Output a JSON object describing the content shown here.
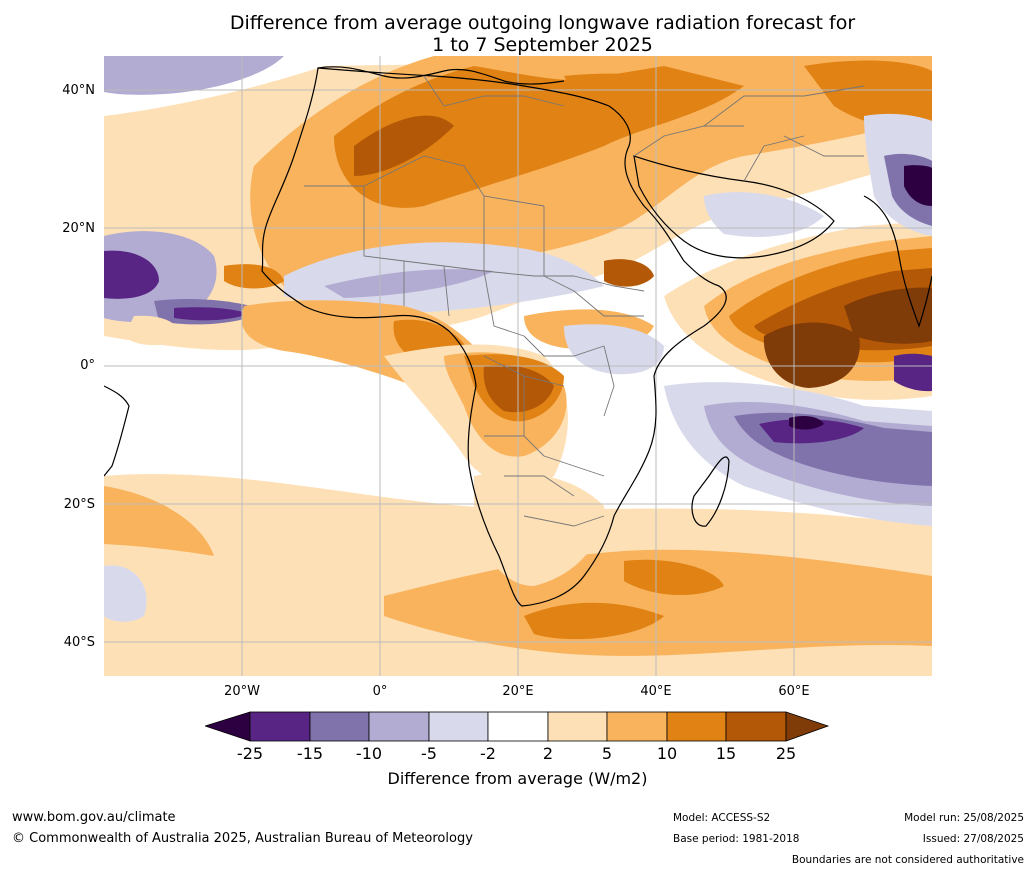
{
  "title": {
    "line1": "Difference from average outgoing longwave radiation forecast for",
    "line2": "1 to 7 September 2025"
  },
  "map": {
    "lat_labels": [
      "40°N",
      "20°N",
      "0°",
      "20°S",
      "40°S"
    ],
    "lon_labels": [
      "20°W",
      "0°",
      "20°E",
      "40°E",
      "60°E"
    ],
    "extent": {
      "lon_min": -40,
      "lon_max": 80,
      "lat_min": -45,
      "lat_max": 45
    },
    "grid": true,
    "colors": {
      "lt_-25": "#2d0041",
      "-25_-15": "#582585",
      "-15_-10": "#8073ac",
      "-10_-5": "#b2abd2",
      "-5_-2": "#d8daeb",
      "-2_2": "#ffffff",
      "2_5": "#fee0b6",
      "5_10": "#f9b35d",
      "10_15": "#e08214",
      "15_25": "#b35806",
      "gt_25": "#7f3b08"
    }
  },
  "colorbar": {
    "ticks": [
      "-25",
      "-15",
      "-10",
      "-5",
      "-2",
      "2",
      "5",
      "10",
      "15",
      "25"
    ],
    "label": "Difference from average (W/m2)"
  },
  "footer": {
    "url": "www.bom.gov.au/climate",
    "copyright": "© Commonwealth of Australia 2025, Australian Bureau of Meteorology",
    "model": "Model: ACCESS-S2",
    "base_period": "Base period: 1981-2018",
    "model_run": "Model run: 25/08/2025",
    "issued": "Issued: 27/08/2025",
    "disclaimer": "Boundaries are not considered authoritative"
  }
}
